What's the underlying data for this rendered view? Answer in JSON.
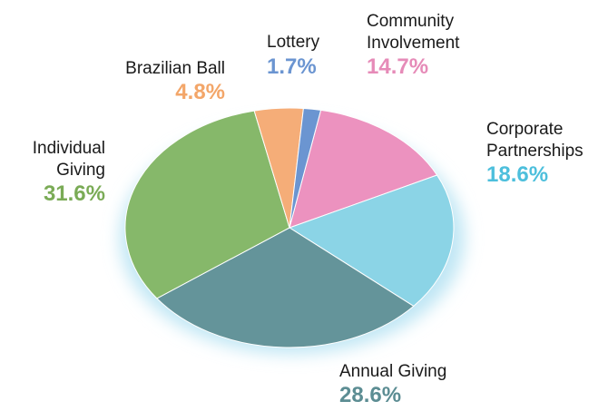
{
  "chart_data": {
    "type": "pie",
    "title": "",
    "slices": [
      {
        "label_lines": [
          "Community",
          "Involvement"
        ],
        "value": 14.7,
        "value_label": "14.7%",
        "color": "#ec92bf"
      },
      {
        "label_lines": [
          "Corporate",
          "Partnerships"
        ],
        "value": 18.6,
        "value_label": "18.6%",
        "color": "#8bd4e6"
      },
      {
        "label_lines": [
          "Annual Giving"
        ],
        "value": 28.6,
        "value_label": "28.6%",
        "color": "#64949a"
      },
      {
        "label_lines": [
          "Individual",
          "Giving"
        ],
        "value": 31.6,
        "value_label": "31.6%",
        "color": "#86b86a"
      },
      {
        "label_lines": [
          "Brazilian Ball"
        ],
        "value": 4.8,
        "value_label": "4.8%",
        "color": "#f5ad78"
      },
      {
        "label_lines": [
          "Lottery"
        ],
        "value": 1.7,
        "value_label": "1.7%",
        "color": "#6b95d1"
      }
    ],
    "percent_colors": {
      "Community Involvement": "#e68bb8",
      "Corporate Partnerships": "#4dbfdc",
      "Annual Giving": "#5c8d93",
      "Individual Giving": "#7aab56",
      "Brazilian Ball": "#f3a669",
      "Lottery": "#6b95d1"
    },
    "legend": "none"
  }
}
